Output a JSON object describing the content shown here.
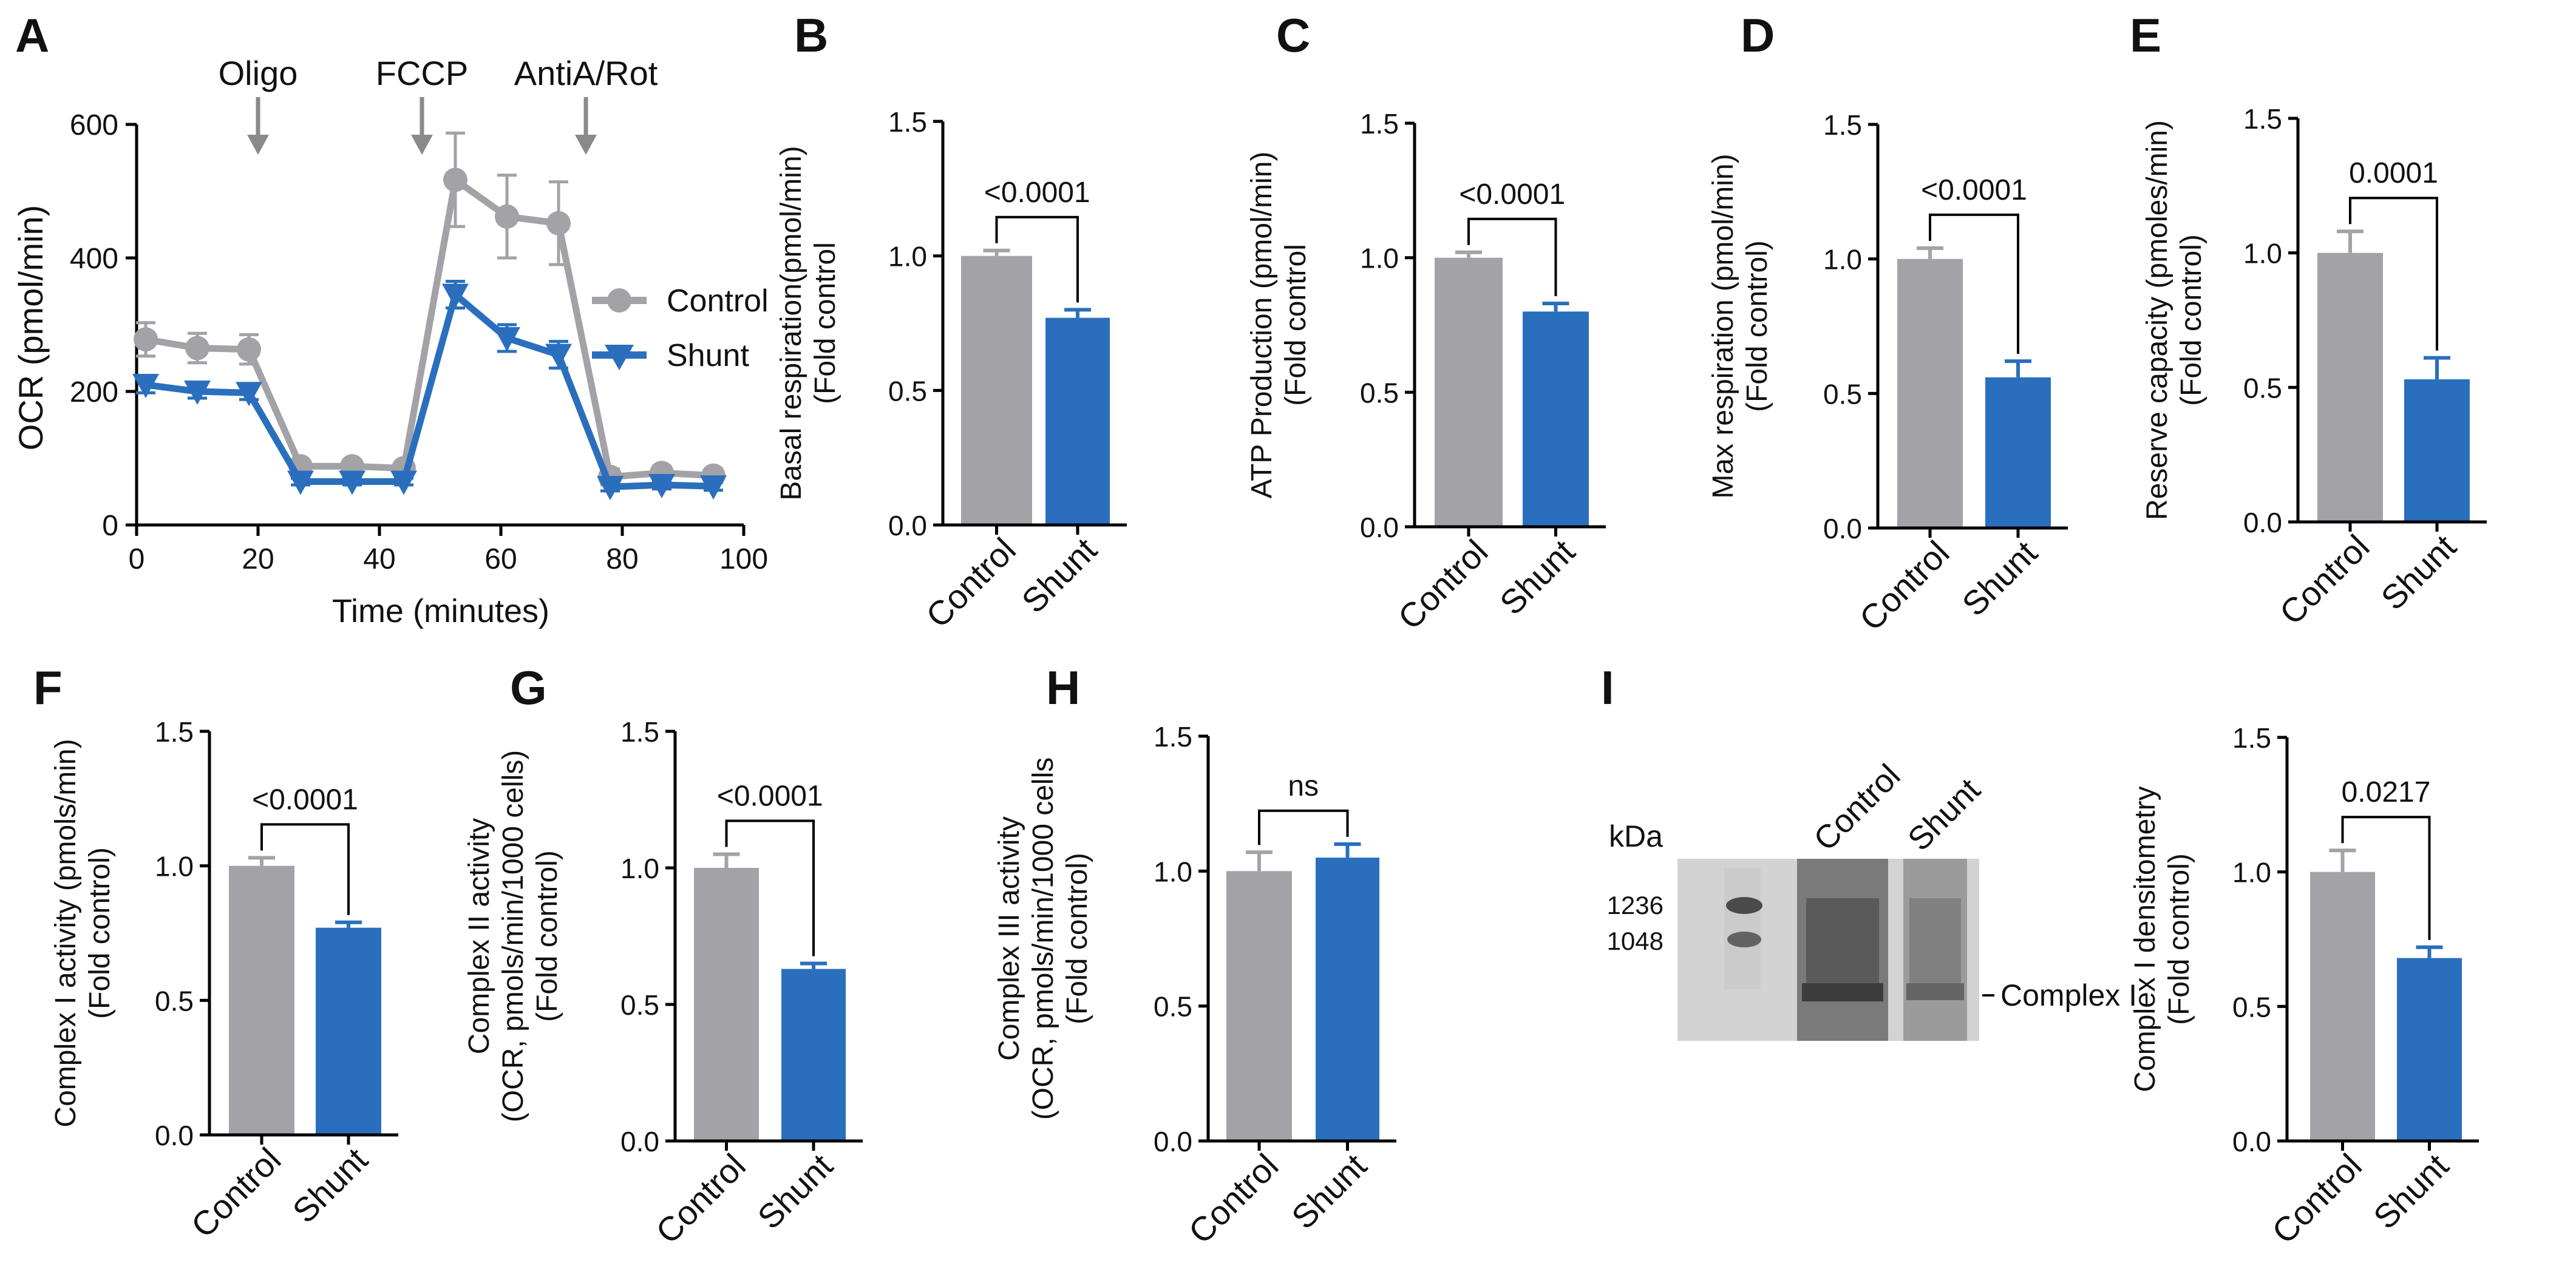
{
  "colors": {
    "control": "#a2a2a7",
    "shunt": "#2a6fbd",
    "axis": "#000000",
    "gel_bg": "#d3d3d3"
  },
  "chart_data": [
    {
      "id": "A",
      "panel_label": "A",
      "type": "line",
      "title": "",
      "xlabel": "Time (minutes)",
      "ylabel": "OCR (pmol/min)",
      "xlim": [
        0,
        100
      ],
      "ylim": [
        0,
        600
      ],
      "xticks": [
        0,
        20,
        40,
        60,
        80,
        100
      ],
      "yticks": [
        0,
        200,
        400,
        600
      ],
      "annotations": [
        {
          "text": "Oligo",
          "x": 20
        },
        {
          "text": "FCCP",
          "x": 47
        },
        {
          "text": "AntiA/Rot",
          "x": 74
        }
      ],
      "legend": "right",
      "series": [
        {
          "name": "Control",
          "marker": "circle",
          "x": [
            1.5,
            10,
            18.5,
            27,
            35.5,
            44,
            52.5,
            61,
            69.5,
            78,
            86.5,
            95
          ],
          "y": [
            278,
            265,
            263,
            88,
            88,
            85,
            517,
            462,
            452,
            72,
            78,
            74
          ],
          "err": [
            25,
            22,
            22,
            8,
            8,
            8,
            70,
            62,
            62,
            12,
            10,
            10
          ]
        },
        {
          "name": "Shunt",
          "marker": "triangle-down",
          "x": [
            1.5,
            10,
            18.5,
            27,
            35.5,
            44,
            52.5,
            61,
            69.5,
            78,
            86.5,
            95
          ],
          "y": [
            210,
            200,
            198,
            65,
            65,
            65,
            345,
            280,
            255,
            57,
            60,
            58
          ],
          "err": [
            12,
            10,
            10,
            5,
            5,
            5,
            20,
            20,
            20,
            6,
            6,
            6
          ]
        }
      ]
    },
    {
      "id": "B",
      "panel_label": "B",
      "type": "bar",
      "ylabel": [
        "Basal respiration(pmol/min)",
        "(Fold control"
      ],
      "categories": [
        "Control",
        "Shunt"
      ],
      "values": [
        1.0,
        0.77
      ],
      "errors": [
        0.02,
        0.03
      ],
      "ylim": [
        0,
        1.5
      ],
      "yticks": [
        "0.0",
        "0.5",
        "1.0",
        "1.5"
      ],
      "significance": "<0.0001"
    },
    {
      "id": "C",
      "panel_label": "C",
      "type": "bar",
      "ylabel": [
        "ATP Production (pmol/min)",
        "(Fold control"
      ],
      "categories": [
        "Control",
        "Shunt"
      ],
      "values": [
        1.0,
        0.8
      ],
      "errors": [
        0.02,
        0.03
      ],
      "ylim": [
        0,
        1.5
      ],
      "yticks": [
        "0.0",
        "0.5",
        "1.0",
        "1.5"
      ],
      "significance": "<0.0001"
    },
    {
      "id": "D",
      "panel_label": "D",
      "type": "bar",
      "ylabel": [
        "Max respiration  (pmol/min)",
        "(Fold control)"
      ],
      "categories": [
        "Control",
        "Shunt"
      ],
      "values": [
        1.0,
        0.56
      ],
      "errors": [
        0.04,
        0.06
      ],
      "ylim": [
        0,
        1.5
      ],
      "yticks": [
        "0.0",
        "0.5",
        "1.0",
        "1.5"
      ],
      "significance": "<0.0001"
    },
    {
      "id": "E",
      "panel_label": "E",
      "type": "bar",
      "ylabel": [
        "Reserve capacity (pmoles/min)",
        "(Fold control)"
      ],
      "categories": [
        "Control",
        "Shunt"
      ],
      "values": [
        1.0,
        0.53
      ],
      "errors": [
        0.08,
        0.08
      ],
      "ylim": [
        0,
        1.5
      ],
      "yticks": [
        "0.0",
        "0.5",
        "1.0",
        "1.5"
      ],
      "significance": "0.0001"
    },
    {
      "id": "F",
      "panel_label": "F",
      "type": "bar",
      "ylabel": [
        "Complex I activity (pmols/min)",
        "(Fold control)"
      ],
      "categories": [
        "Control",
        "Shunt"
      ],
      "values": [
        1.0,
        0.77
      ],
      "errors": [
        0.03,
        0.02
      ],
      "ylim": [
        0,
        1.5
      ],
      "yticks": [
        "0.0",
        "0.5",
        "1.0",
        "1.5"
      ],
      "significance": "<0.0001"
    },
    {
      "id": "G",
      "panel_label": "G",
      "type": "bar",
      "ylabel": [
        "Complex II activity",
        "(OCR, pmols/min/1000 cells)",
        "(Fold control)"
      ],
      "categories": [
        "Control",
        "Shunt"
      ],
      "values": [
        1.0,
        0.63
      ],
      "errors": [
        0.05,
        0.02
      ],
      "ylim": [
        0,
        1.5
      ],
      "yticks": [
        "0.0",
        "0.5",
        "1.0",
        "1.5"
      ],
      "significance": "<0.0001"
    },
    {
      "id": "H",
      "panel_label": "H",
      "type": "bar",
      "ylabel": [
        "Complex III activity",
        "(OCR, pmols/min/1000 cells",
        "(Fold control)"
      ],
      "categories": [
        "Control",
        "Shunt"
      ],
      "values": [
        1.0,
        1.05
      ],
      "errors": [
        0.07,
        0.05
      ],
      "ylim": [
        0,
        1.5
      ],
      "yticks": [
        "0.0",
        "0.5",
        "1.0",
        "1.5"
      ],
      "significance": "ns"
    },
    {
      "id": "I",
      "panel_label": "",
      "type": "bar",
      "ylabel": [
        "Complex I densitometry",
        "(Fold control)"
      ],
      "categories": [
        "Control",
        "Shunt"
      ],
      "values": [
        1.0,
        0.68
      ],
      "errors": [
        0.08,
        0.04
      ],
      "ylim": [
        0,
        1.5
      ],
      "yticks": [
        "0.0",
        "0.5",
        "1.0",
        "1.5"
      ],
      "significance": "0.0217"
    }
  ],
  "gel": {
    "panel_label": "I",
    "unit_label": "kDa",
    "markers": [
      "1236",
      "1048"
    ],
    "lanes": [
      "Control",
      "Shunt"
    ],
    "band_label": "Complex I"
  }
}
